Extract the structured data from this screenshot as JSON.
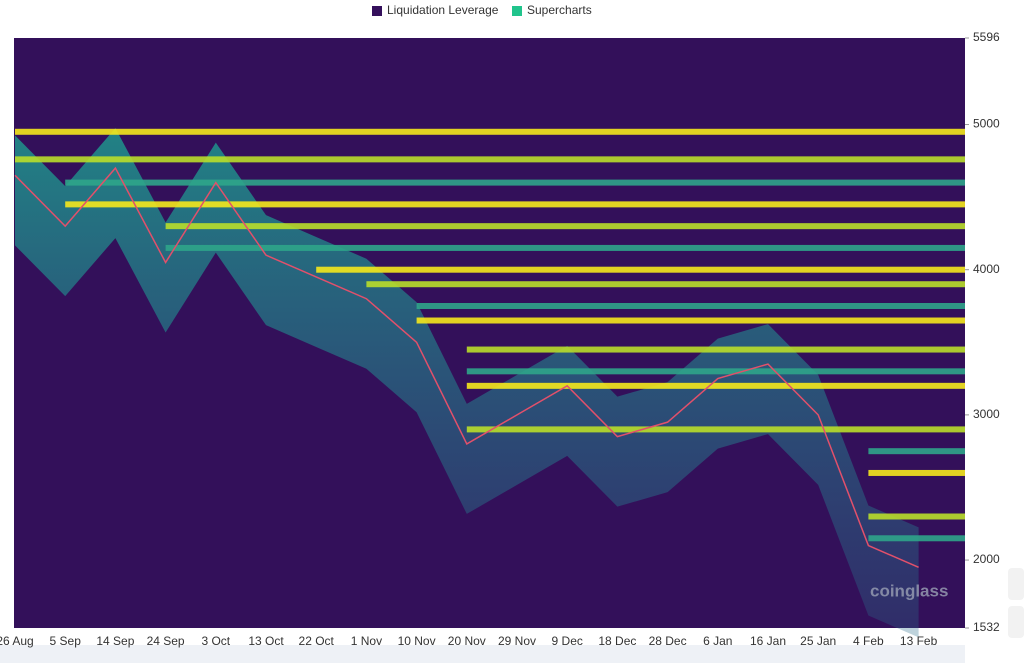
{
  "chart_data": {
    "type": "heatmap",
    "series": [
      {
        "name": "Liquidation Leverage",
        "color": "#35105c"
      },
      {
        "name": "Supercharts",
        "color": "#21c48c",
        "values": [
          4650,
          4300,
          4700,
          4050,
          4600,
          4100,
          3950,
          3800,
          3500,
          2800,
          3000,
          3200,
          2850,
          2950,
          3250,
          3350,
          3000,
          2100,
          1950
        ]
      }
    ],
    "categories": [
      "26 Aug",
      "5 Sep",
      "14 Sep",
      "24 Sep",
      "3 Oct",
      "13 Oct",
      "22 Oct",
      "1 Nov",
      "10 Nov",
      "20 Nov",
      "29 Nov",
      "9 Dec",
      "18 Dec",
      "28 Dec",
      "6 Jan",
      "16 Jan",
      "25 Jan",
      "4 Feb",
      "13 Feb"
    ],
    "heat_levels": [
      4950,
      4760,
      4600,
      4450,
      4300,
      4150,
      4000,
      3900,
      3750,
      3650,
      3450,
      3300,
      3200,
      2900,
      2750,
      2600,
      2300,
      2150
    ],
    "ylim": [
      1532,
      5596
    ],
    "yticks": [
      1532,
      2000,
      3000,
      4000,
      5000,
      5596
    ],
    "watermark": "coinglass"
  }
}
